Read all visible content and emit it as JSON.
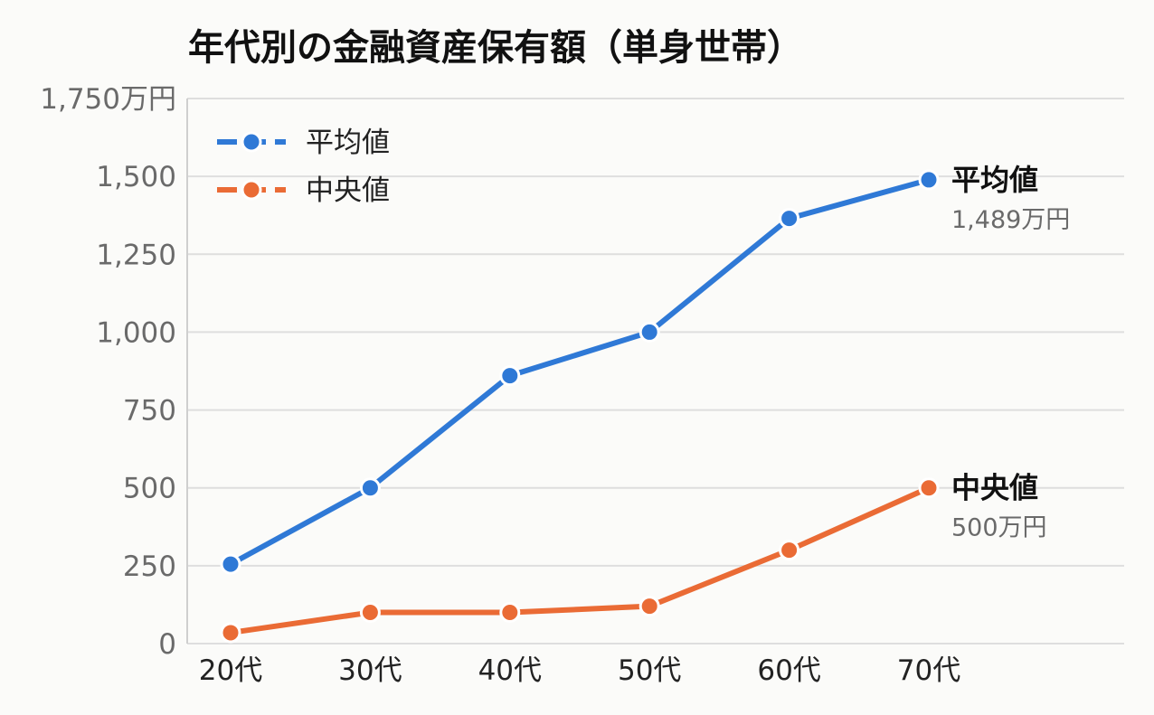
{
  "chart_data": {
    "type": "line",
    "title": "年代別の金融資産保有額（単身世帯）",
    "xlabel": "",
    "ylabel": "",
    "categories": [
      "20代",
      "30代",
      "40代",
      "50代",
      "60代",
      "70代"
    ],
    "ylim": [
      0,
      1750
    ],
    "yticks": [
      0,
      250,
      500,
      750,
      1000,
      1250,
      1500,
      1750
    ],
    "ytick_labels": [
      "0",
      "250",
      "500",
      "750",
      "1,000",
      "1,250",
      "1,500",
      "1,750万円"
    ],
    "grid": true,
    "legend_position": "top-left",
    "series": [
      {
        "name": "平均値",
        "color": "#2f79d6",
        "values": [
          255,
          500,
          860,
          1000,
          1365,
          1489
        ],
        "end_label": "平均値",
        "end_value_label": "1,489万円"
      },
      {
        "name": "中央値",
        "color": "#ea6b35",
        "values": [
          35,
          100,
          100,
          120,
          300,
          500
        ],
        "end_label": "中央値",
        "end_value_label": "500万円"
      }
    ]
  }
}
